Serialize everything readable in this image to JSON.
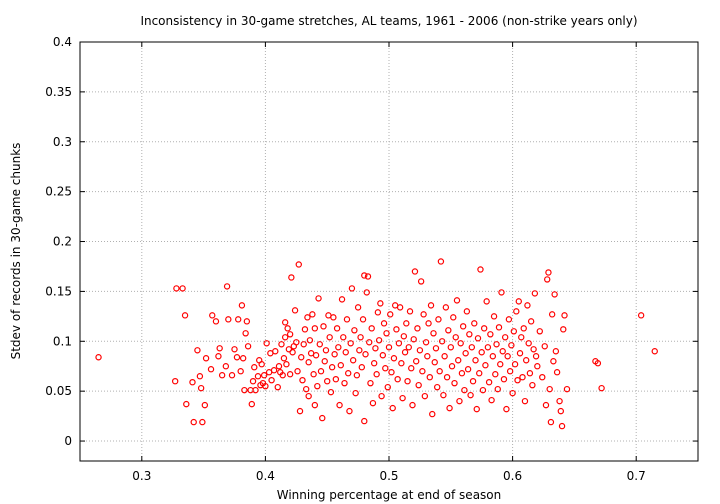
{
  "chart_data": {
    "type": "scatter",
    "title": "Inconsistency in 30-game stretches, AL teams, 1961 - 2006 (non-strike years only)",
    "xlabel": "Winning percentage at end of season",
    "ylabel": "Stdev of records in 30-game chunks",
    "xlim": [
      0.25,
      0.75
    ],
    "ylim": [
      -0.02,
      0.4
    ],
    "xticks": [
      "0.3",
      "0.4",
      "0.5",
      "0.6",
      "0.7"
    ],
    "yticks": [
      "0",
      "0.05",
      "0.1",
      "0.15",
      "0.2",
      "0.25",
      "0.3",
      "0.35",
      "0.4"
    ],
    "grid": true,
    "marker_color": "#ff0000",
    "points": [
      [
        0.265,
        0.084
      ],
      [
        0.327,
        0.06
      ],
      [
        0.328,
        0.153
      ],
      [
        0.333,
        0.153
      ],
      [
        0.335,
        0.126
      ],
      [
        0.336,
        0.037
      ],
      [
        0.341,
        0.059
      ],
      [
        0.342,
        0.019
      ],
      [
        0.345,
        0.091
      ],
      [
        0.347,
        0.065
      ],
      [
        0.348,
        0.053
      ],
      [
        0.349,
        0.019
      ],
      [
        0.351,
        0.036
      ],
      [
        0.352,
        0.083
      ],
      [
        0.356,
        0.072
      ],
      [
        0.357,
        0.126
      ],
      [
        0.36,
        0.12
      ],
      [
        0.362,
        0.085
      ],
      [
        0.363,
        0.093
      ],
      [
        0.365,
        0.066
      ],
      [
        0.368,
        0.075
      ],
      [
        0.369,
        0.155
      ],
      [
        0.37,
        0.122
      ],
      [
        0.373,
        0.066
      ],
      [
        0.375,
        0.092
      ],
      [
        0.377,
        0.084
      ],
      [
        0.378,
        0.122
      ],
      [
        0.38,
        0.07
      ],
      [
        0.381,
        0.136
      ],
      [
        0.382,
        0.083
      ],
      [
        0.383,
        0.051
      ],
      [
        0.384,
        0.108
      ],
      [
        0.385,
        0.12
      ],
      [
        0.386,
        0.095
      ],
      [
        0.388,
        0.051
      ],
      [
        0.389,
        0.037
      ],
      [
        0.39,
        0.06
      ],
      [
        0.391,
        0.074
      ],
      [
        0.392,
        0.051
      ],
      [
        0.394,
        0.065
      ],
      [
        0.395,
        0.081
      ],
      [
        0.396,
        0.056
      ],
      [
        0.397,
        0.077
      ],
      [
        0.398,
        0.058
      ],
      [
        0.399,
        0.066
      ],
      [
        0.4,
        0.055
      ],
      [
        0.401,
        0.098
      ],
      [
        0.403,
        0.069
      ],
      [
        0.404,
        0.088
      ],
      [
        0.405,
        0.061
      ],
      [
        0.407,
        0.071
      ],
      [
        0.408,
        0.09
      ],
      [
        0.41,
        0.054
      ],
      [
        0.411,
        0.075
      ],
      [
        0.412,
        0.069
      ],
      [
        0.413,
        0.097
      ],
      [
        0.414,
        0.066
      ],
      [
        0.415,
        0.083
      ],
      [
        0.416,
        0.119
      ],
      [
        0.416,
        0.104
      ],
      [
        0.417,
        0.077
      ],
      [
        0.418,
        0.113
      ],
      [
        0.419,
        0.092
      ],
      [
        0.42,
        0.067
      ],
      [
        0.42,
        0.107
      ],
      [
        0.421,
        0.164
      ],
      [
        0.422,
        0.089
      ],
      [
        0.423,
        0.095
      ],
      [
        0.424,
        0.131
      ],
      [
        0.425,
        0.099
      ],
      [
        0.426,
        0.07
      ],
      [
        0.427,
        0.177
      ],
      [
        0.428,
        0.03
      ],
      [
        0.429,
        0.084
      ],
      [
        0.43,
        0.061
      ],
      [
        0.431,
        0.097
      ],
      [
        0.432,
        0.112
      ],
      [
        0.433,
        0.052
      ],
      [
        0.434,
        0.124
      ],
      [
        0.435,
        0.079
      ],
      [
        0.435,
        0.045
      ],
      [
        0.436,
        0.101
      ],
      [
        0.437,
        0.088
      ],
      [
        0.438,
        0.127
      ],
      [
        0.439,
        0.067
      ],
      [
        0.44,
        0.036
      ],
      [
        0.44,
        0.113
      ],
      [
        0.441,
        0.086
      ],
      [
        0.442,
        0.055
      ],
      [
        0.443,
        0.143
      ],
      [
        0.444,
        0.097
      ],
      [
        0.445,
        0.07
      ],
      [
        0.446,
        0.023
      ],
      [
        0.447,
        0.115
      ],
      [
        0.448,
        0.08
      ],
      [
        0.449,
        0.091
      ],
      [
        0.45,
        0.06
      ],
      [
        0.451,
        0.126
      ],
      [
        0.452,
        0.104
      ],
      [
        0.453,
        0.049
      ],
      [
        0.454,
        0.074
      ],
      [
        0.455,
        0.124
      ],
      [
        0.456,
        0.087
      ],
      [
        0.457,
        0.062
      ],
      [
        0.458,
        0.113
      ],
      [
        0.459,
        0.094
      ],
      [
        0.46,
        0.036
      ],
      [
        0.461,
        0.076
      ],
      [
        0.462,
        0.142
      ],
      [
        0.463,
        0.104
      ],
      [
        0.464,
        0.058
      ],
      [
        0.465,
        0.089
      ],
      [
        0.466,
        0.122
      ],
      [
        0.467,
        0.068
      ],
      [
        0.468,
        0.03
      ],
      [
        0.469,
        0.098
      ],
      [
        0.47,
        0.153
      ],
      [
        0.471,
        0.081
      ],
      [
        0.472,
        0.111
      ],
      [
        0.473,
        0.048
      ],
      [
        0.474,
        0.066
      ],
      [
        0.475,
        0.134
      ],
      [
        0.476,
        0.091
      ],
      [
        0.477,
        0.104
      ],
      [
        0.478,
        0.074
      ],
      [
        0.479,
        0.122
      ],
      [
        0.48,
        0.166
      ],
      [
        0.48,
        0.02
      ],
      [
        0.481,
        0.087
      ],
      [
        0.482,
        0.149
      ],
      [
        0.483,
        0.165
      ],
      [
        0.484,
        0.099
      ],
      [
        0.485,
        0.058
      ],
      [
        0.486,
        0.113
      ],
      [
        0.487,
        0.038
      ],
      [
        0.488,
        0.078
      ],
      [
        0.489,
        0.093
      ],
      [
        0.49,
        0.067
      ],
      [
        0.491,
        0.129
      ],
      [
        0.492,
        0.101
      ],
      [
        0.493,
        0.138
      ],
      [
        0.494,
        0.045
      ],
      [
        0.495,
        0.086
      ],
      [
        0.496,
        0.118
      ],
      [
        0.497,
        0.073
      ],
      [
        0.498,
        0.108
      ],
      [
        0.499,
        0.054
      ],
      [
        0.5,
        0.094
      ],
      [
        0.501,
        0.127
      ],
      [
        0.502,
        0.069
      ],
      [
        0.503,
        0.033
      ],
      [
        0.504,
        0.083
      ],
      [
        0.505,
        0.136
      ],
      [
        0.506,
        0.112
      ],
      [
        0.507,
        0.062
      ],
      [
        0.508,
        0.098
      ],
      [
        0.509,
        0.134
      ],
      [
        0.51,
        0.078
      ],
      [
        0.511,
        0.043
      ],
      [
        0.512,
        0.105
      ],
      [
        0.513,
        0.089
      ],
      [
        0.514,
        0.118
      ],
      [
        0.515,
        0.06
      ],
      [
        0.516,
        0.094
      ],
      [
        0.517,
        0.13
      ],
      [
        0.518,
        0.073
      ],
      [
        0.519,
        0.036
      ],
      [
        0.52,
        0.102
      ],
      [
        0.521,
        0.17
      ],
      [
        0.522,
        0.08
      ],
      [
        0.523,
        0.113
      ],
      [
        0.524,
        0.056
      ],
      [
        0.525,
        0.091
      ],
      [
        0.526,
        0.16
      ],
      [
        0.527,
        0.07
      ],
      [
        0.528,
        0.127
      ],
      [
        0.529,
        0.045
      ],
      [
        0.53,
        0.099
      ],
      [
        0.531,
        0.085
      ],
      [
        0.532,
        0.118
      ],
      [
        0.533,
        0.064
      ],
      [
        0.534,
        0.136
      ],
      [
        0.535,
        0.027
      ],
      [
        0.536,
        0.108
      ],
      [
        0.537,
        0.079
      ],
      [
        0.538,
        0.093
      ],
      [
        0.539,
        0.054
      ],
      [
        0.54,
        0.122
      ],
      [
        0.541,
        0.07
      ],
      [
        0.542,
        0.18
      ],
      [
        0.543,
        0.1
      ],
      [
        0.544,
        0.046
      ],
      [
        0.545,
        0.085
      ],
      [
        0.546,
        0.134
      ],
      [
        0.547,
        0.064
      ],
      [
        0.548,
        0.111
      ],
      [
        0.549,
        0.033
      ],
      [
        0.55,
        0.094
      ],
      [
        0.551,
        0.075
      ],
      [
        0.552,
        0.124
      ],
      [
        0.553,
        0.058
      ],
      [
        0.554,
        0.104
      ],
      [
        0.555,
        0.141
      ],
      [
        0.556,
        0.081
      ],
      [
        0.557,
        0.04
      ],
      [
        0.558,
        0.098
      ],
      [
        0.559,
        0.068
      ],
      [
        0.56,
        0.115
      ],
      [
        0.561,
        0.051
      ],
      [
        0.562,
        0.088
      ],
      [
        0.563,
        0.13
      ],
      [
        0.564,
        0.072
      ],
      [
        0.565,
        0.107
      ],
      [
        0.566,
        0.046
      ],
      [
        0.567,
        0.094
      ],
      [
        0.568,
        0.06
      ],
      [
        0.569,
        0.118
      ],
      [
        0.57,
        0.081
      ],
      [
        0.571,
        0.032
      ],
      [
        0.572,
        0.103
      ],
      [
        0.573,
        0.068
      ],
      [
        0.574,
        0.172
      ],
      [
        0.575,
        0.089
      ],
      [
        0.576,
        0.051
      ],
      [
        0.577,
        0.113
      ],
      [
        0.578,
        0.076
      ],
      [
        0.579,
        0.14
      ],
      [
        0.58,
        0.094
      ],
      [
        0.581,
        0.059
      ],
      [
        0.582,
        0.107
      ],
      [
        0.583,
        0.041
      ],
      [
        0.584,
        0.085
      ],
      [
        0.585,
        0.125
      ],
      [
        0.586,
        0.067
      ],
      [
        0.587,
        0.097
      ],
      [
        0.588,
        0.052
      ],
      [
        0.589,
        0.114
      ],
      [
        0.59,
        0.077
      ],
      [
        0.591,
        0.149
      ],
      [
        0.592,
        0.09
      ],
      [
        0.593,
        0.062
      ],
      [
        0.594,
        0.104
      ],
      [
        0.595,
        0.032
      ],
      [
        0.596,
        0.085
      ],
      [
        0.597,
        0.122
      ],
      [
        0.598,
        0.07
      ],
      [
        0.599,
        0.096
      ],
      [
        0.6,
        0.048
      ],
      [
        0.601,
        0.11
      ],
      [
        0.602,
        0.077
      ],
      [
        0.603,
        0.13
      ],
      [
        0.604,
        0.061
      ],
      [
        0.605,
        0.14
      ],
      [
        0.606,
        0.088
      ],
      [
        0.607,
        0.104
      ],
      [
        0.608,
        0.064
      ],
      [
        0.609,
        0.113
      ],
      [
        0.61,
        0.04
      ],
      [
        0.611,
        0.081
      ],
      [
        0.612,
        0.136
      ],
      [
        0.613,
        0.098
      ],
      [
        0.614,
        0.068
      ],
      [
        0.615,
        0.12
      ],
      [
        0.616,
        0.056
      ],
      [
        0.617,
        0.092
      ],
      [
        0.618,
        0.148
      ],
      [
        0.619,
        0.085
      ],
      [
        0.62,
        0.075
      ],
      [
        0.622,
        0.11
      ],
      [
        0.624,
        0.064
      ],
      [
        0.626,
        0.095
      ],
      [
        0.627,
        0.036
      ],
      [
        0.628,
        0.162
      ],
      [
        0.629,
        0.169
      ],
      [
        0.63,
        0.052
      ],
      [
        0.631,
        0.019
      ],
      [
        0.632,
        0.127
      ],
      [
        0.633,
        0.08
      ],
      [
        0.634,
        0.147
      ],
      [
        0.635,
        0.09
      ],
      [
        0.636,
        0.069
      ],
      [
        0.638,
        0.04
      ],
      [
        0.639,
        0.03
      ],
      [
        0.64,
        0.015
      ],
      [
        0.641,
        0.112
      ],
      [
        0.642,
        0.126
      ],
      [
        0.644,
        0.052
      ],
      [
        0.667,
        0.08
      ],
      [
        0.669,
        0.078
      ],
      [
        0.672,
        0.053
      ],
      [
        0.704,
        0.126
      ],
      [
        0.715,
        0.09
      ]
    ]
  }
}
